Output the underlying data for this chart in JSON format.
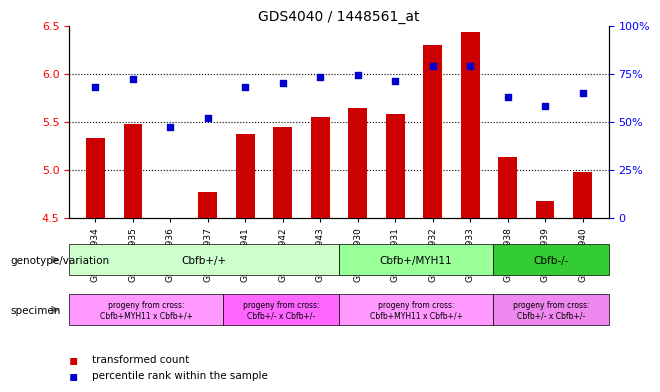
{
  "title": "GDS4040 / 1448561_at",
  "samples": [
    "GSM475934",
    "GSM475935",
    "GSM475936",
    "GSM475937",
    "GSM475941",
    "GSM475942",
    "GSM475943",
    "GSM475930",
    "GSM475931",
    "GSM475932",
    "GSM475933",
    "GSM475938",
    "GSM475939",
    "GSM475940"
  ],
  "bar_values": [
    5.33,
    5.47,
    4.5,
    4.77,
    5.37,
    5.44,
    5.55,
    5.64,
    5.58,
    6.3,
    6.43,
    5.13,
    4.67,
    4.97
  ],
  "dot_values": [
    68,
    72,
    47,
    52,
    68,
    70,
    73,
    74,
    71,
    79,
    79,
    63,
    58,
    65
  ],
  "bar_color": "#cc0000",
  "dot_color": "#0000cc",
  "ylim_left": [
    4.5,
    6.5
  ],
  "ylim_right": [
    0,
    100
  ],
  "yticks_left": [
    4.5,
    5.0,
    5.5,
    6.0,
    6.5
  ],
  "yticks_right": [
    0,
    25,
    50,
    75,
    100
  ],
  "hlines": [
    5.0,
    5.5,
    6.0
  ],
  "genotype_groups": [
    {
      "label": "Cbfb+/+",
      "start": 0,
      "end": 7,
      "color": "#ccffcc"
    },
    {
      "label": "Cbfb+/MYH11",
      "start": 7,
      "end": 11,
      "color": "#99ff99"
    },
    {
      "label": "Cbfb-/-",
      "start": 11,
      "end": 14,
      "color": "#33cc33"
    }
  ],
  "specimen_groups": [
    {
      "label": "progeny from cross:\nCbfb+MYH11 x Cbfb+/+",
      "start": 0,
      "end": 4,
      "color": "#ff99ff"
    },
    {
      "label": "progeny from cross:\nCbfb+/- x Cbfb+/-",
      "start": 4,
      "end": 7,
      "color": "#ff66ff"
    },
    {
      "label": "progeny from cross:\nCbfb+MYH11 x Cbfb+/+",
      "start": 7,
      "end": 11,
      "color": "#ff99ff"
    },
    {
      "label": "progeny from cross:\nCbfb+/- x Cbfb+/-",
      "start": 11,
      "end": 14,
      "color": "#ee88ee"
    }
  ],
  "legend_red": "transformed count",
  "legend_blue": "percentile rank within the sample",
  "genotype_label": "genotype/variation",
  "specimen_label": "specimen"
}
